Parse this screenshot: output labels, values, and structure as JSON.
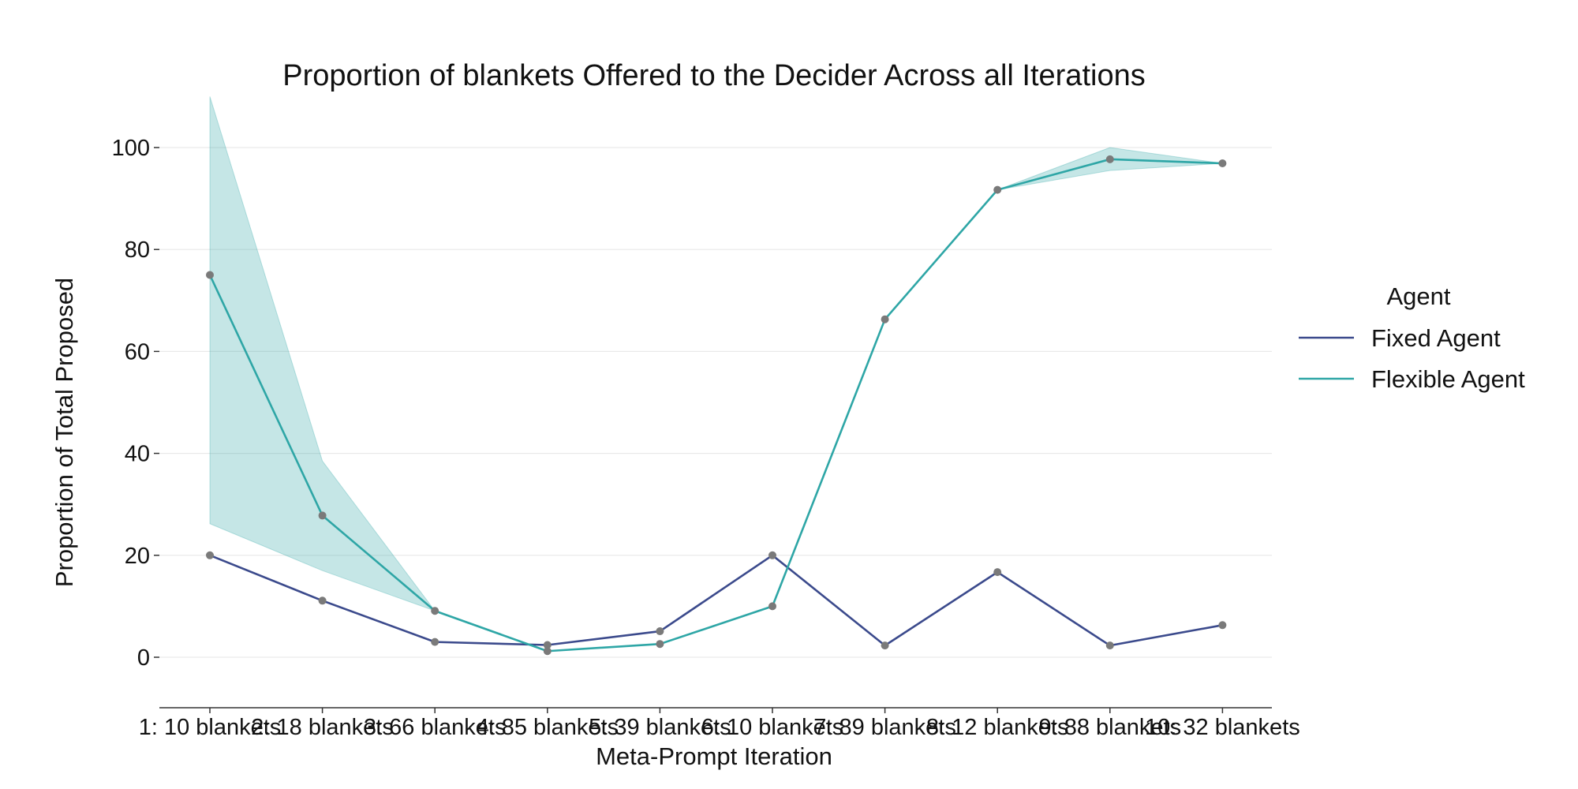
{
  "chart_data": {
    "type": "line",
    "title": "Proportion of blankets Offered to the Decider Across all Iterations",
    "xlabel": "Meta-Prompt Iteration",
    "ylabel": "Proportion of Total Proposed",
    "categories": [
      "1: 10 blankets",
      "2: 18 blankets",
      "3: 66 blankets",
      "4: 85 blankets",
      "5: 39 blankets",
      "6: 10 blankets",
      "7: 89 blankets",
      "8: 12 blankets",
      "9: 88 blankets",
      "10: 32 blankets"
    ],
    "yticks": [
      0,
      20,
      40,
      60,
      80,
      100
    ],
    "ylim": [
      -10,
      110
    ],
    "grid": true,
    "legend": {
      "title": "Agent",
      "position": "right"
    },
    "series": [
      {
        "name": "Fixed Agent",
        "color": "#3b4a8c",
        "values": [
          20,
          11.1,
          3.0,
          2.4,
          5.1,
          20,
          2.3,
          16.7,
          2.3,
          6.3
        ]
      },
      {
        "name": "Flexible Agent",
        "color": "#2ea6a6",
        "values": [
          75,
          27.8,
          9.1,
          1.2,
          2.6,
          10,
          66.3,
          91.7,
          97.7,
          96.9
        ],
        "ci_lower": [
          26.2,
          17,
          9.1,
          1.2,
          2.6,
          10,
          66.3,
          91.7,
          95.5,
          96.9
        ],
        "ci_upper": [
          110,
          38.5,
          9.1,
          1.2,
          2.6,
          10,
          66.3,
          91.7,
          100,
          96.9
        ]
      }
    ]
  }
}
